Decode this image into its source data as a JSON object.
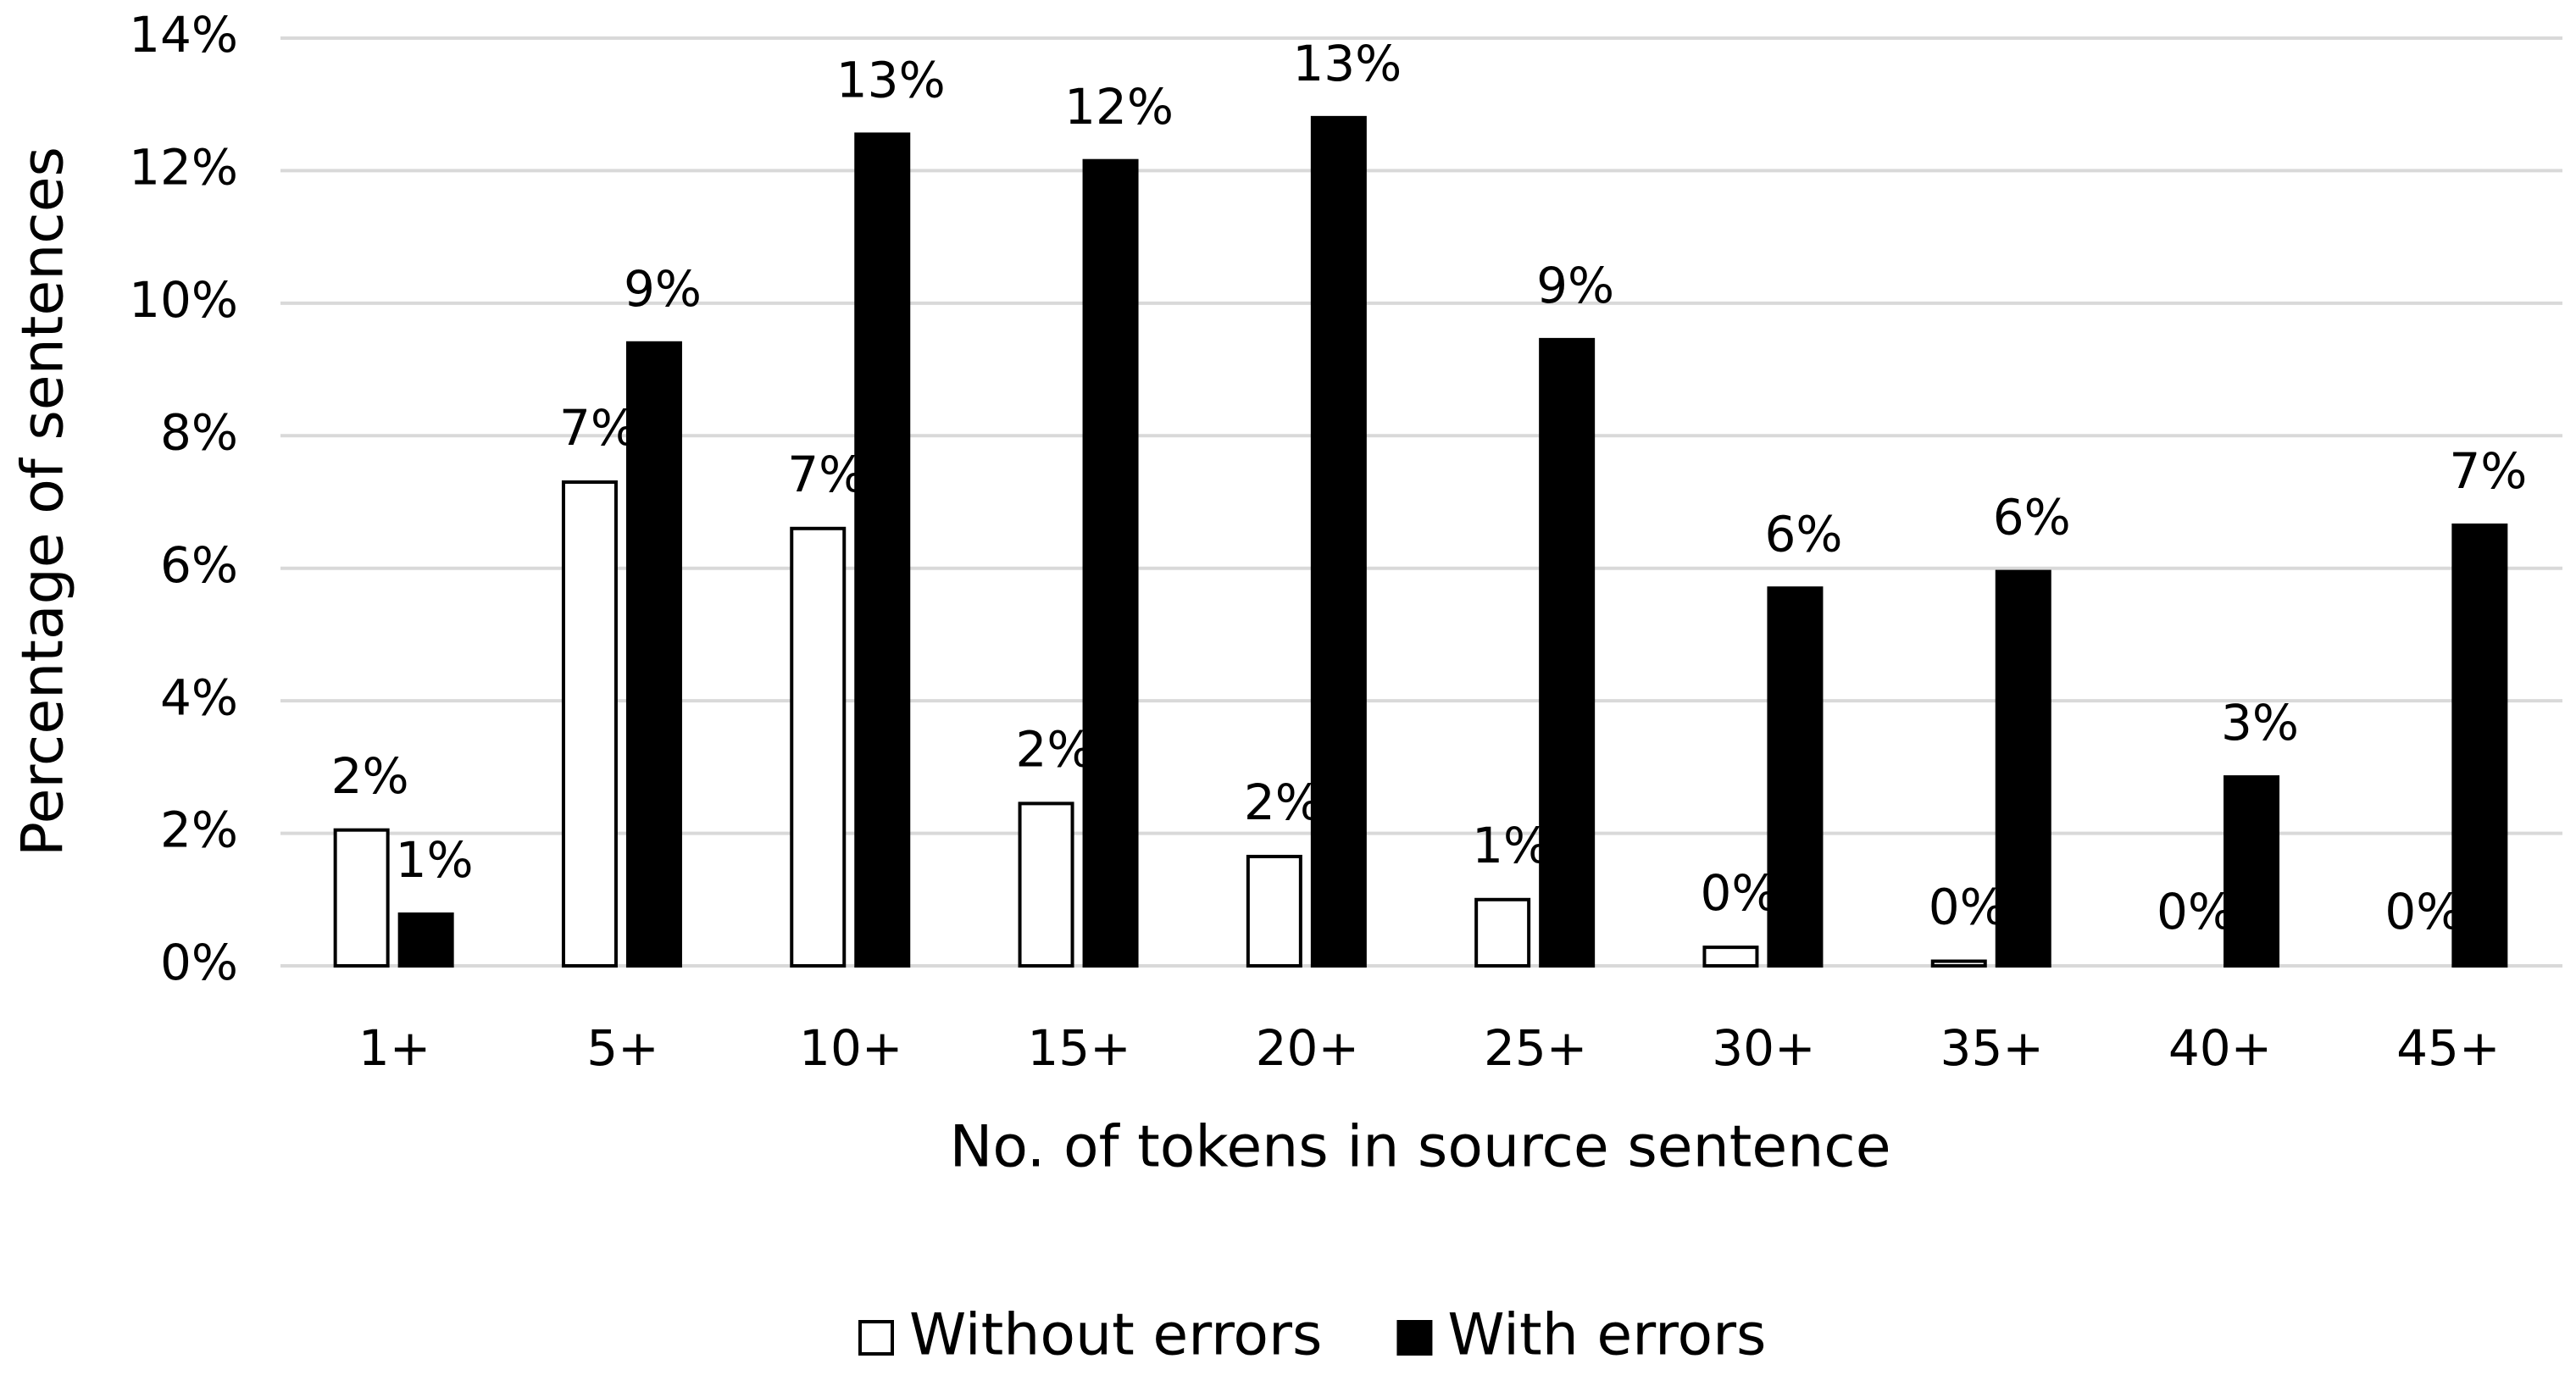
{
  "chart_data": {
    "type": "bar",
    "x_label": "No. of tokens in source sentence",
    "y_label": "Percentage of sentences",
    "categories": [
      "1+",
      "5+",
      "10+",
      "15+",
      "20+",
      "25+",
      "30+",
      "35+",
      "40+",
      "45+"
    ],
    "series": [
      {
        "name": "Without errors",
        "color": "#ffffff",
        "values": [
          2.05,
          7.3,
          6.6,
          2.45,
          1.65,
          1.0,
          0.28,
          0.07,
          0,
          0
        ],
        "value_labels": [
          "2%",
          "7%",
          "7%",
          "2%",
          "2%",
          "1%",
          "0%",
          "0%",
          "0%",
          "0%"
        ]
      },
      {
        "name": "With errors",
        "color": "#000000",
        "values": [
          0.78,
          9.4,
          12.55,
          12.15,
          12.8,
          9.45,
          5.7,
          5.95,
          2.85,
          6.65
        ],
        "value_labels": [
          "1%",
          "9%",
          "13%",
          "12%",
          "13%",
          "9%",
          "6%",
          "6%",
          "3%",
          "7%"
        ]
      }
    ],
    "ylim": [
      0,
      14
    ],
    "yticks": [
      {
        "value": 0,
        "label": "0%"
      },
      {
        "value": 2,
        "label": "2%"
      },
      {
        "value": 4,
        "label": "4%"
      },
      {
        "value": 6,
        "label": "6%"
      },
      {
        "value": 8,
        "label": "8%"
      },
      {
        "value": 10,
        "label": "10%"
      },
      {
        "value": 12,
        "label": "12%"
      },
      {
        "value": 14,
        "label": "14%"
      }
    ],
    "grid": true,
    "legend": "bottom"
  }
}
